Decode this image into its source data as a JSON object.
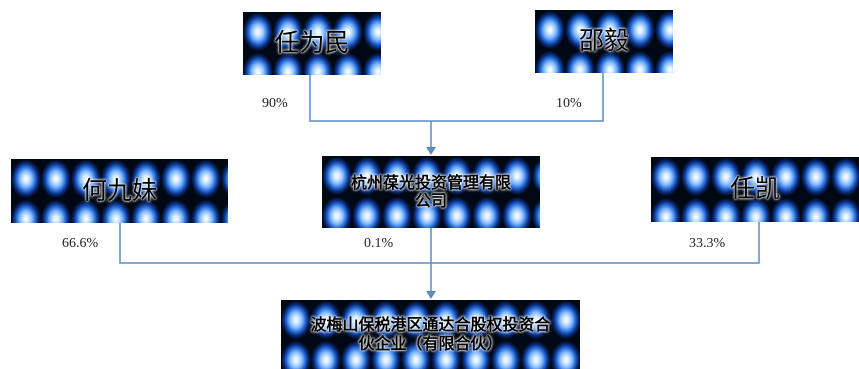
{
  "nodes": {
    "ren_weimin": "任为民",
    "shao_yi": "邵毅",
    "he_jiumei": "何九妹",
    "hangzhou_mgmt": "杭州葆光投资管理有限公司",
    "ren_kai": "任凯",
    "ningbo_partnership": "波梅山保税港区通达合股权投资合伙企业（有限合伙）"
  },
  "percentages": {
    "ren_weimin": "90%",
    "shao_yi": "10%",
    "he_jiumei": "66.6%",
    "hangzhou_mgmt": "0.1%",
    "ren_kai": "33.3%"
  },
  "colors": {
    "connector": "#5b8cc6",
    "text": "#000000",
    "node_gradient_light": "#d8ecff",
    "node_gradient_dark": "#0b2e80"
  }
}
